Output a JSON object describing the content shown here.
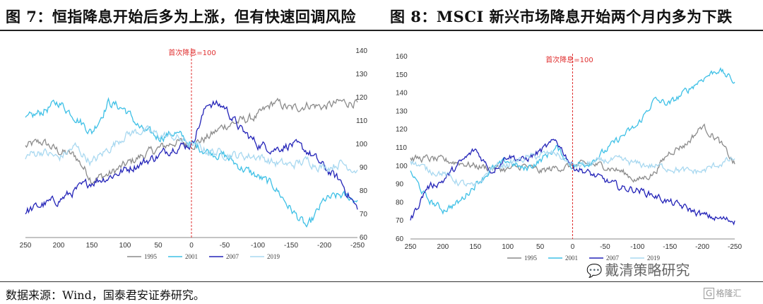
{
  "header": {
    "title_left": "图 7：恒指降息开始后多为上涨，但有快速回调风险",
    "title_right": "图 8：MSCI 新兴市场降息开始两个月内多为下跌"
  },
  "footer": {
    "source": "数据来源：Wind，国泰君安证券研究。",
    "watermark": "戴清策略研究",
    "logo": "格隆汇",
    "logo_mark": "G"
  },
  "icons": {
    "watermark_icon": "wechat-icon",
    "logo_icon": "gelonghui-logo-icon"
  },
  "chart_data": [
    {
      "type": "line",
      "annotation": "首次降息=100",
      "x_ticks": [
        250,
        200,
        150,
        100,
        50,
        0,
        -50,
        -100,
        -150,
        -200,
        -250
      ],
      "y_ticks": [
        60,
        70,
        80,
        90,
        100,
        110,
        120,
        130,
        140
      ],
      "y_axis_side": "right",
      "xlim": [
        250,
        -250
      ],
      "ylim": [
        60,
        140
      ],
      "x_sample": [
        250,
        225,
        200,
        175,
        150,
        125,
        100,
        75,
        50,
        25,
        0,
        -25,
        -50,
        -75,
        -100,
        -125,
        -150,
        -175,
        -200,
        -225,
        -250
      ],
      "series": [
        {
          "name": "1995",
          "color": "#8c8c8c",
          "values": [
            99,
            101,
            97,
            95,
            85,
            87,
            91,
            95,
            98,
            101,
            100,
            103,
            108,
            110,
            112,
            118,
            115,
            117,
            116,
            118,
            118
          ]
        },
        {
          "name": "2001",
          "color": "#3ec0e6",
          "values": [
            110,
            114,
            118,
            112,
            105,
            118,
            115,
            106,
            103,
            105,
            100,
            97,
            95,
            90,
            86,
            82,
            72,
            64,
            76,
            78,
            76
          ]
        },
        {
          "name": "2007",
          "color": "#2424b8",
          "values": [
            71,
            74,
            76,
            80,
            84,
            86,
            89,
            92,
            95,
            99,
            100,
            118,
            116,
            106,
            100,
            98,
            100,
            97,
            90,
            84,
            72
          ]
        },
        {
          "name": "2019",
          "color": "#a8d8f0",
          "values": [
            95,
            97,
            94,
            99,
            92,
            98,
            104,
            106,
            104,
            103,
            100,
            97,
            96,
            95,
            95,
            92,
            91,
            93,
            90,
            92,
            89
          ]
        }
      ]
    },
    {
      "type": "line",
      "annotation": "首次降息=100",
      "x_ticks": [
        250,
        200,
        150,
        100,
        50,
        0,
        -50,
        -100,
        -150,
        -200,
        -250
      ],
      "y_ticks": [
        60,
        70,
        80,
        90,
        100,
        110,
        120,
        130,
        140,
        150,
        160
      ],
      "y_axis_side": "left",
      "xlim": [
        250,
        -250
      ],
      "ylim": [
        60,
        160
      ],
      "x_sample": [
        250,
        225,
        200,
        175,
        150,
        125,
        100,
        75,
        50,
        25,
        0,
        -25,
        -50,
        -75,
        -100,
        -125,
        -150,
        -175,
        -200,
        -225,
        -250
      ],
      "series": [
        {
          "name": "1995",
          "color": "#8c8c8c",
          "values": [
            104,
            104,
            103,
            102,
            100,
            99,
            98,
            100,
            97,
            99,
            100,
            101,
            100,
            97,
            92,
            96,
            108,
            112,
            122,
            114,
            101
          ]
        },
        {
          "name": "2001",
          "color": "#3ec0e6",
          "values": [
            97,
            82,
            76,
            80,
            90,
            98,
            103,
            98,
            103,
            110,
            100,
            102,
            108,
            116,
            122,
            136,
            134,
            141,
            148,
            153,
            146
          ]
        },
        {
          "name": "2007",
          "color": "#2424b8",
          "values": [
            70,
            88,
            92,
            101,
            109,
            97,
            106,
            103,
            108,
            114,
            100,
            96,
            92,
            88,
            87,
            84,
            80,
            77,
            73,
            71,
            70
          ]
        },
        {
          "name": "2019",
          "color": "#a8d8f0",
          "values": [
            103,
            98,
            96,
            91,
            88,
            99,
            101,
            104,
            106,
            107,
            100,
            101,
            103,
            103,
            101,
            100,
            99,
            97,
            97,
            101,
            104
          ]
        }
      ]
    }
  ]
}
